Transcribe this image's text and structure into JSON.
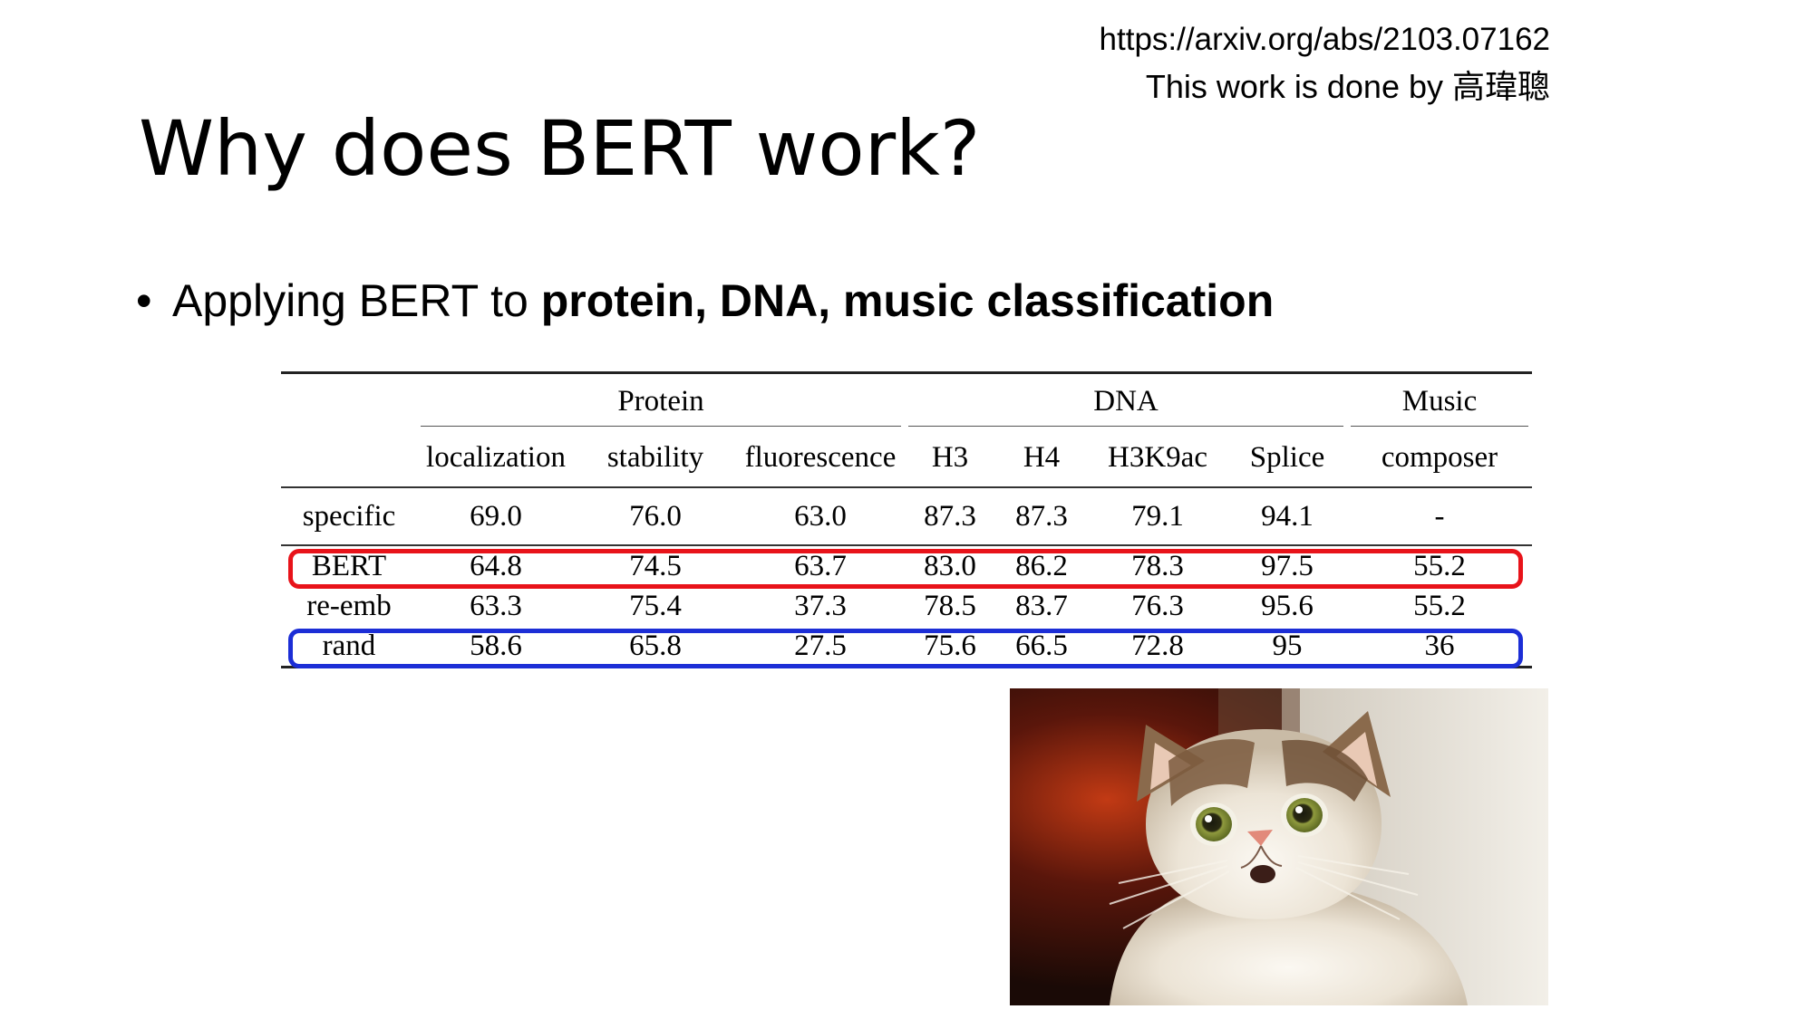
{
  "reference": {
    "url": "https://arxiv.org/abs/2103.07162",
    "credit": "This work is done by 高瑋聰"
  },
  "title": "Why does BERT work?",
  "bullet": {
    "prefix": "Applying BERT to ",
    "bold": "protein, DNA, music classification"
  },
  "table": {
    "groups": [
      "Protein",
      "DNA",
      "Music"
    ],
    "columns": [
      "localization",
      "stability",
      "fluorescence",
      "H3",
      "H4",
      "H3K9ac",
      "Splice",
      "composer"
    ],
    "rows": [
      {
        "label": "specific",
        "values": [
          "69.0",
          "76.0",
          "63.0",
          "87.3",
          "87.3",
          "79.1",
          "94.1",
          "-"
        ]
      },
      {
        "label": "BERT",
        "values": [
          "64.8",
          "74.5",
          "63.7",
          "83.0",
          "86.2",
          "78.3",
          "97.5",
          "55.2"
        ]
      },
      {
        "label": "re-emb",
        "values": [
          "63.3",
          "75.4",
          "37.3",
          "78.5",
          "83.7",
          "76.3",
          "95.6",
          "55.2"
        ]
      },
      {
        "label": "rand",
        "values": [
          "58.6",
          "65.8",
          "27.5",
          "75.6",
          "66.5",
          "72.8",
          "95",
          "36"
        ]
      }
    ],
    "highlights": {
      "BERT": "#e8131a",
      "rand": "#1c2ed6"
    }
  },
  "photo": {
    "subject": "surprised cat"
  }
}
